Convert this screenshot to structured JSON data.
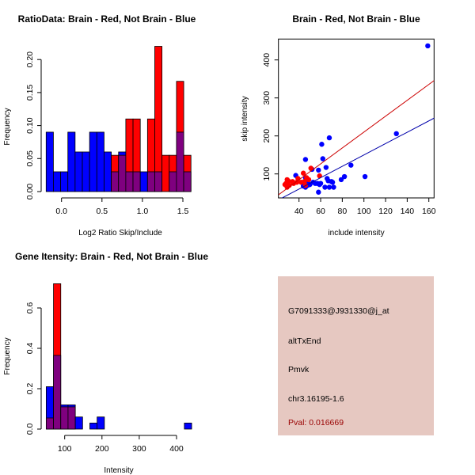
{
  "chart_data": [
    {
      "type": "bar",
      "title": "RatioData: Brain - Red, Not Brain - Blue",
      "xlabel": "Log2 Ratio Skip/Include",
      "ylabel": "Frequency",
      "xlim": [
        -0.19,
        1.6
      ],
      "ylim": [
        0,
        0.22
      ],
      "bin_start": -0.19,
      "bin_width": 0.0895,
      "xticks": [
        "0.0",
        "0.5",
        "1.0",
        "1.5"
      ],
      "xtick_values": [
        0,
        0.5,
        1.0,
        1.5
      ],
      "yticks": [
        "0.00",
        "0.05",
        "0.10",
        "0.15",
        "0.20"
      ],
      "ytick_values": [
        0,
        0.05,
        0.1,
        0.15,
        0.2
      ],
      "series": [
        {
          "name": "Not Brain",
          "color": "#0000ff",
          "values": [
            0.09,
            0.03,
            0.03,
            0.09,
            0.06,
            0.06,
            0.09,
            0.09,
            0.06,
            0.03,
            0.06,
            0.03,
            0.03,
            0.03,
            0.03,
            0.03,
            0,
            0.03,
            0.09,
            0.03
          ]
        },
        {
          "name": "Brain",
          "color": "#ff0000",
          "values": [
            0,
            0,
            0,
            0,
            0,
            0,
            0,
            0,
            0,
            0.055,
            0.055,
            0.11,
            0.11,
            0,
            0.11,
            0.22,
            0.055,
            0.055,
            0.167,
            0.055
          ]
        }
      ],
      "overlap_color": "#7f007f"
    },
    {
      "type": "scatter",
      "title": "Brain - Red, Not Brain - Blue",
      "xlabel": "include intensity",
      "ylabel": "skip intensity",
      "xlim": [
        21,
        165
      ],
      "ylim": [
        35,
        455
      ],
      "xticks": [
        "40",
        "60",
        "80",
        "100",
        "120",
        "140",
        "160"
      ],
      "xtick_values": [
        40,
        60,
        80,
        100,
        120,
        140,
        160
      ],
      "yticks": [
        "100",
        "200",
        "300",
        "400"
      ],
      "ytick_values": [
        100,
        200,
        300,
        400
      ],
      "series": [
        {
          "name": "Brain",
          "color": "#ff0000",
          "line_color": "#cc0000",
          "fit_slope": 2.09,
          "fit_intercept": 1.1,
          "points": [
            [
              28,
              75
            ],
            [
              29,
              85
            ],
            [
              30,
              80
            ],
            [
              31,
              70
            ],
            [
              27,
              72
            ],
            [
              29,
              65
            ],
            [
              34,
              80
            ],
            [
              35,
              75
            ],
            [
              39,
              88
            ],
            [
              38,
              78
            ],
            [
              42,
              78
            ],
            [
              44,
              102
            ],
            [
              45,
              80
            ],
            [
              47,
              90
            ],
            [
              49,
              85
            ],
            [
              51,
              115
            ],
            [
              59,
              95
            ],
            [
              46,
              70
            ],
            [
              30,
              82
            ]
          ]
        },
        {
          "name": "Not Brain",
          "color": "#0000ff",
          "line_color": "#0000aa",
          "fit_slope": 1.495,
          "fit_intercept": 0.4,
          "points": [
            [
              37,
              96
            ],
            [
              46,
              138
            ],
            [
              46,
              90
            ],
            [
              47,
              75
            ],
            [
              46,
              65
            ],
            [
              48,
              70
            ],
            [
              50,
              72
            ],
            [
              52,
              112
            ],
            [
              53,
              78
            ],
            [
              55,
              75
            ],
            [
              57,
              75
            ],
            [
              58,
              110
            ],
            [
              58,
              52
            ],
            [
              59,
              72
            ],
            [
              60,
              75
            ],
            [
              61,
              178
            ],
            [
              62,
              140
            ],
            [
              64,
              65
            ],
            [
              65,
              117
            ],
            [
              66,
              88
            ],
            [
              67,
              82
            ],
            [
              68,
              65
            ],
            [
              68,
              195
            ],
            [
              70,
              80
            ],
            [
              71,
              78
            ],
            [
              72,
              65
            ],
            [
              79,
              85
            ],
            [
              82,
              93
            ],
            [
              88,
              123
            ],
            [
              101,
              93
            ],
            [
              130,
              206
            ],
            [
              159,
              437
            ],
            [
              44,
              68
            ],
            [
              45,
              78
            ],
            [
              48,
              80
            ]
          ]
        }
      ]
    },
    {
      "type": "bar",
      "title": "Gene Itensity: Brain - Red, Not Brain - Blue",
      "xlabel": "Intensity",
      "ylabel": "Frequency",
      "xlim": [
        50.5,
        440.5
      ],
      "ylim": [
        0,
        0.72
      ],
      "bin_start": 50.5,
      "bin_width": 19.5,
      "xticks": [
        "100",
        "200",
        "300",
        "400"
      ],
      "xtick_values": [
        100,
        200,
        300,
        400
      ],
      "yticks": [
        "0.0",
        "0.2",
        "0.4",
        "0.6"
      ],
      "ytick_values": [
        0,
        0.2,
        0.4,
        0.6
      ],
      "series": [
        {
          "name": "Not Brain",
          "color": "#0000ff",
          "values": [
            0.21,
            0.365,
            0.12,
            0.12,
            0.06,
            0,
            0.03,
            0.06,
            0,
            0,
            0,
            0,
            0,
            0,
            0,
            0,
            0,
            0,
            0,
            0.03
          ]
        },
        {
          "name": "Brain",
          "color": "#ff0000",
          "values": [
            0.055,
            0.72,
            0.11,
            0.11,
            0,
            0,
            0,
            0,
            0,
            0,
            0,
            0,
            0,
            0,
            0,
            0,
            0,
            0,
            0,
            0
          ]
        }
      ],
      "overlap_color": "#7f007f"
    }
  ],
  "info": {
    "probe": "G7091333@J931330@j_at",
    "event": "altTxEnd",
    "gene": "Pmvk",
    "location": "chr3.16195-1.6",
    "pval": "Pval: 0.016669",
    "bg_color": "#e6c8c1",
    "pval_color": "#990000"
  }
}
